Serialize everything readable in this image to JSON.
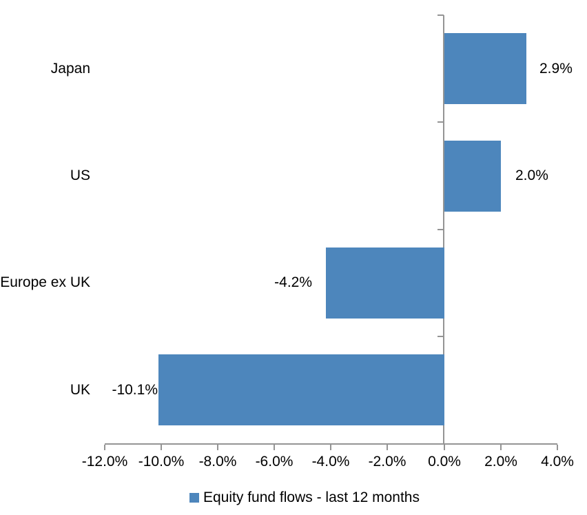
{
  "chart_data": {
    "type": "bar",
    "orientation": "horizontal",
    "title": "",
    "categories": [
      "Japan",
      "US",
      "Europe ex UK",
      "UK"
    ],
    "series": [
      {
        "name": "Equity fund flows - last 12 months",
        "values": [
          2.9,
          2.0,
          -4.2,
          -10.1
        ],
        "value_labels": [
          "2.9%",
          "2.0%",
          "-4.2%",
          "-10.1%"
        ],
        "color": "#4d86bc"
      }
    ],
    "x_axis": {
      "range": [
        -12,
        4
      ],
      "tick_step": 2,
      "ticks": [
        {
          "value": -12,
          "label": "-12.0%"
        },
        {
          "value": -10,
          "label": "-10.0%"
        },
        {
          "value": -8,
          "label": "-8.0%"
        },
        {
          "value": -6,
          "label": "-6.0%"
        },
        {
          "value": -4,
          "label": "-4.0%"
        },
        {
          "value": -2,
          "label": "-2.0%"
        },
        {
          "value": 0,
          "label": "0.0%"
        },
        {
          "value": 2,
          "label": "2.0%"
        },
        {
          "value": 4,
          "label": "4.0%"
        }
      ]
    },
    "legend": {
      "position": "bottom",
      "label": "Equity fund flows - last 12 months",
      "swatch_color": "#4d86bc"
    },
    "grid": false,
    "value_labels_position": "outside-end",
    "axis_color": "#949494",
    "text_color": "#000000",
    "background": "#ffffff"
  }
}
